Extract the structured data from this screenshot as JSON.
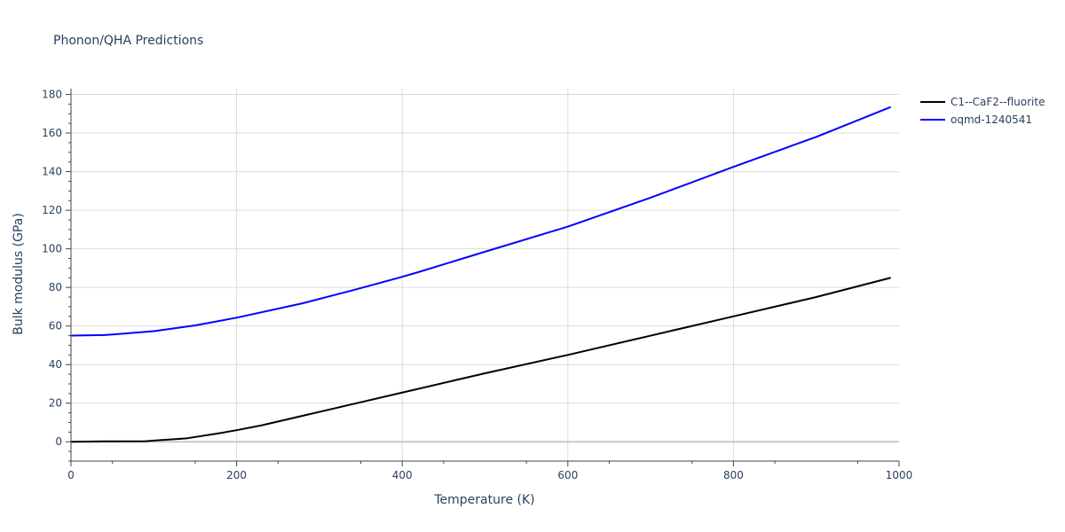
{
  "chart_data": {
    "type": "line",
    "title": "Phonon/QHA Predictions",
    "xlabel": "Temperature (K)",
    "ylabel": "Bulk modulus (GPa)",
    "xlim": [
      0,
      1000
    ],
    "ylim": [
      -10,
      183
    ],
    "x_ticks": [
      0,
      200,
      400,
      600,
      800,
      1000
    ],
    "y_ticks": [
      0,
      20,
      40,
      60,
      80,
      100,
      120,
      140,
      160,
      180
    ],
    "grid": true,
    "legend_position": "top-right",
    "series": [
      {
        "name": "C1--CaF2--fluorite",
        "color": "#000000",
        "x": [
          0,
          40,
          90,
          100,
          140,
          180,
          200,
          230,
          280,
          340,
          400,
          500,
          600,
          700,
          800,
          900,
          990
        ],
        "y": [
          0,
          0.2,
          0.3,
          0.6,
          1.8,
          4.5,
          6.0,
          8.5,
          13.5,
          19.5,
          25.5,
          35.5,
          45.0,
          55.0,
          65.0,
          75.0,
          85.0
        ]
      },
      {
        "name": "oqmd-1240541",
        "color": "#0000ff",
        "x": [
          0,
          40,
          50,
          100,
          150,
          200,
          280,
          340,
          400,
          420,
          500,
          600,
          700,
          800,
          900,
          990
        ],
        "y": [
          55.0,
          55.3,
          55.6,
          57.3,
          60.3,
          64.3,
          71.8,
          78.5,
          85.5,
          88.0,
          98.5,
          111.5,
          126.5,
          142.5,
          158.0,
          173.5
        ]
      }
    ]
  }
}
